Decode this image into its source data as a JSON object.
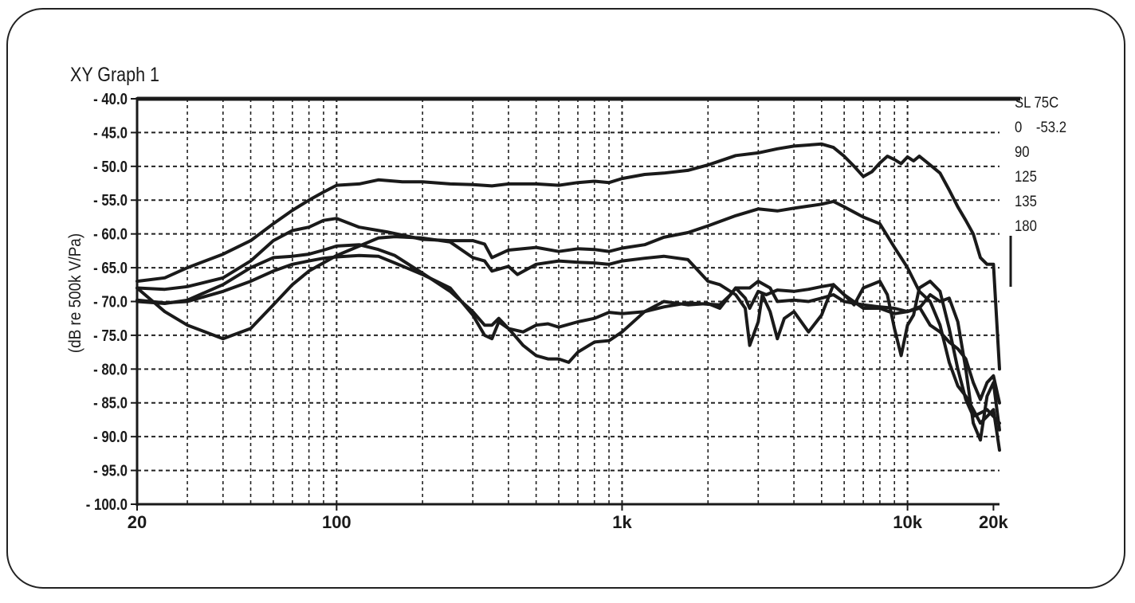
{
  "chart_data": {
    "type": "line",
    "title": "XY Graph 1",
    "ylabel": "(dB re 500k V/Pa)",
    "xlabel": "",
    "xscale": "log",
    "xlim": [
      20,
      21000
    ],
    "ylim": [
      -100,
      -40
    ],
    "grid": true,
    "legend_placement": "right",
    "x_ticks": [
      {
        "value": 20,
        "label": "20"
      },
      {
        "value": 100,
        "label": "100"
      },
      {
        "value": 1000,
        "label": "1k"
      },
      {
        "value": 10000,
        "label": "10k"
      },
      {
        "value": 20000,
        "label": "20k"
      }
    ],
    "y_ticks": [
      {
        "value": -40,
        "label": "- 40.0"
      },
      {
        "value": -45,
        "label": "- 45.0"
      },
      {
        "value": -50,
        "label": "- 50.0"
      },
      {
        "value": -55,
        "label": "- 55.0"
      },
      {
        "value": -60,
        "label": "- 60.0"
      },
      {
        "value": -65,
        "label": "- 65.0"
      },
      {
        "value": -70,
        "label": "- 70.0"
      },
      {
        "value": -75,
        "label": "- 75.0"
      },
      {
        "value": -80,
        "label": "- 80.0"
      },
      {
        "value": -85,
        "label": "- 85.0"
      },
      {
        "value": -90,
        "label": "- 90.0"
      },
      {
        "value": -95,
        "label": "- 95.0"
      },
      {
        "value": -100,
        "label": "- 100.0"
      }
    ],
    "legend": {
      "header": "SL 75C",
      "entries": [
        {
          "name": "0",
          "value": "-53.2"
        },
        {
          "name": "90",
          "value": ""
        },
        {
          "name": "125",
          "value": ""
        },
        {
          "name": "135",
          "value": ""
        },
        {
          "name": "180",
          "value": ""
        }
      ]
    },
    "series": [
      {
        "name": "0",
        "color": "#1a1a1a",
        "points": [
          [
            20,
            -67
          ],
          [
            25,
            -66.5
          ],
          [
            30,
            -65
          ],
          [
            40,
            -63
          ],
          [
            50,
            -61
          ],
          [
            60,
            -58.5
          ],
          [
            70,
            -56.5
          ],
          [
            80,
            -55
          ],
          [
            90,
            -53.8
          ],
          [
            100,
            -52.8
          ],
          [
            120,
            -52.6
          ],
          [
            140,
            -52
          ],
          [
            170,
            -52.3
          ],
          [
            200,
            -52.3
          ],
          [
            250,
            -52.6
          ],
          [
            300,
            -52.7
          ],
          [
            350,
            -52.9
          ],
          [
            400,
            -52.6
          ],
          [
            500,
            -52.6
          ],
          [
            600,
            -52.8
          ],
          [
            700,
            -52.4
          ],
          [
            800,
            -52.2
          ],
          [
            900,
            -52.4
          ],
          [
            1000,
            -51.8
          ],
          [
            1200,
            -51.2
          ],
          [
            1400,
            -51
          ],
          [
            1700,
            -50.6
          ],
          [
            2000,
            -49.8
          ],
          [
            2500,
            -48.4
          ],
          [
            3000,
            -48
          ],
          [
            3500,
            -47.4
          ],
          [
            4000,
            -47
          ],
          [
            5000,
            -46.7
          ],
          [
            5500,
            -47.2
          ],
          [
            6000,
            -48.5
          ],
          [
            6500,
            -50
          ],
          [
            7000,
            -51.5
          ],
          [
            7500,
            -50.8
          ],
          [
            8000,
            -49.5
          ],
          [
            8500,
            -48.5
          ],
          [
            9000,
            -49
          ],
          [
            9500,
            -49.6
          ],
          [
            10000,
            -48.6
          ],
          [
            10500,
            -49.2
          ],
          [
            11000,
            -48.5
          ],
          [
            12000,
            -49.8
          ],
          [
            13000,
            -51
          ],
          [
            14000,
            -53.5
          ],
          [
            15000,
            -56
          ],
          [
            16000,
            -58
          ],
          [
            17000,
            -60
          ],
          [
            18000,
            -63.5
          ],
          [
            19000,
            -64.5
          ],
          [
            20000,
            -64.5
          ],
          [
            21000,
            -80
          ]
        ]
      },
      {
        "name": "90",
        "color": "#1a1a1a",
        "points": [
          [
            20,
            -68
          ],
          [
            25,
            -68.2
          ],
          [
            30,
            -67.8
          ],
          [
            40,
            -66.5
          ],
          [
            50,
            -64
          ],
          [
            60,
            -61
          ],
          [
            70,
            -59.5
          ],
          [
            80,
            -59
          ],
          [
            90,
            -58
          ],
          [
            100,
            -57.7
          ],
          [
            120,
            -59
          ],
          [
            150,
            -59.7
          ],
          [
            200,
            -60.8
          ],
          [
            250,
            -61
          ],
          [
            300,
            -61
          ],
          [
            330,
            -61.5
          ],
          [
            350,
            -63.5
          ],
          [
            400,
            -62.4
          ],
          [
            500,
            -62
          ],
          [
            600,
            -62.6
          ],
          [
            700,
            -62.2
          ],
          [
            800,
            -62.3
          ],
          [
            900,
            -62.6
          ],
          [
            1000,
            -62.1
          ],
          [
            1200,
            -61.6
          ],
          [
            1400,
            -60.5
          ],
          [
            1700,
            -59.8
          ],
          [
            2000,
            -58.8
          ],
          [
            2500,
            -57.3
          ],
          [
            3000,
            -56.3
          ],
          [
            3500,
            -56.6
          ],
          [
            4000,
            -56.2
          ],
          [
            5000,
            -55.6
          ],
          [
            5500,
            -55.2
          ],
          [
            6000,
            -56
          ],
          [
            7000,
            -57.5
          ],
          [
            8000,
            -58.5
          ],
          [
            9000,
            -62
          ],
          [
            10000,
            -65
          ],
          [
            11000,
            -68.5
          ],
          [
            12000,
            -70
          ],
          [
            13000,
            -73.5
          ],
          [
            14000,
            -79
          ],
          [
            15000,
            -82.5
          ],
          [
            16000,
            -84
          ],
          [
            17000,
            -86
          ],
          [
            18000,
            -88
          ],
          [
            19000,
            -87
          ],
          [
            20000,
            -86
          ],
          [
            21000,
            -92
          ]
        ]
      },
      {
        "name": "125",
        "color": "#1a1a1a",
        "points": [
          [
            20,
            -69.8
          ],
          [
            25,
            -70.2
          ],
          [
            30,
            -70
          ],
          [
            40,
            -68.5
          ],
          [
            50,
            -67
          ],
          [
            60,
            -65.5
          ],
          [
            70,
            -64.5
          ],
          [
            80,
            -64
          ],
          [
            90,
            -63.6
          ],
          [
            100,
            -63.4
          ],
          [
            120,
            -63.2
          ],
          [
            140,
            -63.3
          ],
          [
            160,
            -64.3
          ],
          [
            200,
            -66
          ],
          [
            250,
            -68
          ],
          [
            300,
            -72
          ],
          [
            330,
            -75
          ],
          [
            350,
            -75.5
          ],
          [
            370,
            -73
          ],
          [
            400,
            -74
          ],
          [
            420,
            -75
          ],
          [
            450,
            -76.5
          ],
          [
            500,
            -78
          ],
          [
            550,
            -78.5
          ],
          [
            600,
            -78.5
          ],
          [
            650,
            -79
          ],
          [
            700,
            -77.5
          ],
          [
            800,
            -76
          ],
          [
            900,
            -75.8
          ],
          [
            1000,
            -74.5
          ],
          [
            1200,
            -71.5
          ],
          [
            1400,
            -70
          ],
          [
            1700,
            -70.5
          ],
          [
            2000,
            -70.3
          ],
          [
            2200,
            -71
          ],
          [
            2500,
            -68
          ],
          [
            2800,
            -68
          ],
          [
            3000,
            -67
          ],
          [
            3300,
            -68
          ],
          [
            3500,
            -70
          ],
          [
            4000,
            -69.8
          ],
          [
            4500,
            -70
          ],
          [
            5000,
            -69.5
          ],
          [
            5500,
            -69
          ],
          [
            6000,
            -70
          ],
          [
            7000,
            -70.5
          ],
          [
            8000,
            -70.8
          ],
          [
            9000,
            -71
          ],
          [
            10000,
            -71.5
          ],
          [
            11000,
            -71
          ],
          [
            12000,
            -69
          ],
          [
            13000,
            -70
          ],
          [
            14000,
            -69.5
          ],
          [
            15000,
            -73
          ],
          [
            16000,
            -80
          ],
          [
            17000,
            -88
          ],
          [
            18000,
            -90.5
          ],
          [
            19000,
            -84
          ],
          [
            20000,
            -82
          ],
          [
            21000,
            -89
          ]
        ]
      },
      {
        "name": "135",
        "color": "#1a1a1a",
        "points": [
          [
            20,
            -70
          ],
          [
            25,
            -70.3
          ],
          [
            30,
            -69.8
          ],
          [
            40,
            -67.5
          ],
          [
            50,
            -65
          ],
          [
            60,
            -63.5
          ],
          [
            70,
            -63.3
          ],
          [
            80,
            -63
          ],
          [
            90,
            -62.4
          ],
          [
            100,
            -61.8
          ],
          [
            120,
            -61.6
          ],
          [
            140,
            -62.3
          ],
          [
            160,
            -63.2
          ],
          [
            200,
            -65.8
          ],
          [
            250,
            -68.5
          ],
          [
            300,
            -71.5
          ],
          [
            330,
            -73.5
          ],
          [
            350,
            -73.5
          ],
          [
            370,
            -72.5
          ],
          [
            400,
            -74
          ],
          [
            450,
            -74.5
          ],
          [
            500,
            -73.5
          ],
          [
            550,
            -73.3
          ],
          [
            600,
            -73.8
          ],
          [
            700,
            -73
          ],
          [
            800,
            -72.5
          ],
          [
            900,
            -71.6
          ],
          [
            1000,
            -71.8
          ],
          [
            1200,
            -71.5
          ],
          [
            1400,
            -70.8
          ],
          [
            1700,
            -70.2
          ],
          [
            2000,
            -70.4
          ],
          [
            2200,
            -70.5
          ],
          [
            2400,
            -69
          ],
          [
            2500,
            -68
          ],
          [
            2700,
            -69.5
          ],
          [
            2800,
            -71
          ],
          [
            3000,
            -68.5
          ],
          [
            3200,
            -69
          ],
          [
            3500,
            -68.3
          ],
          [
            4000,
            -68.5
          ],
          [
            4500,
            -68.2
          ],
          [
            5000,
            -67.8
          ],
          [
            5500,
            -67.5
          ],
          [
            6000,
            -69
          ],
          [
            7000,
            -71
          ],
          [
            8000,
            -71
          ],
          [
            9000,
            -71.8
          ],
          [
            10000,
            -71.5
          ],
          [
            11000,
            -70.8
          ],
          [
            12000,
            -73.5
          ],
          [
            13000,
            -74.5
          ],
          [
            14000,
            -76
          ],
          [
            15000,
            -77
          ],
          [
            16000,
            -78.5
          ],
          [
            17000,
            -82
          ],
          [
            18000,
            -84.5
          ],
          [
            19000,
            -82
          ],
          [
            20000,
            -81
          ],
          [
            21000,
            -85
          ]
        ]
      },
      {
        "name": "180",
        "color": "#1a1a1a",
        "points": [
          [
            20,
            -68
          ],
          [
            25,
            -71.5
          ],
          [
            30,
            -73.5
          ],
          [
            40,
            -75.5
          ],
          [
            50,
            -74
          ],
          [
            60,
            -70.5
          ],
          [
            70,
            -67.5
          ],
          [
            80,
            -65.5
          ],
          [
            100,
            -63.2
          ],
          [
            120,
            -61.8
          ],
          [
            140,
            -60.6
          ],
          [
            160,
            -60.4
          ],
          [
            200,
            -60.6
          ],
          [
            250,
            -61.2
          ],
          [
            300,
            -63.5
          ],
          [
            330,
            -64
          ],
          [
            350,
            -65.5
          ],
          [
            400,
            -64.8
          ],
          [
            430,
            -66
          ],
          [
            500,
            -64.5
          ],
          [
            600,
            -64
          ],
          [
            700,
            -64.2
          ],
          [
            800,
            -64.3
          ],
          [
            900,
            -64.5
          ],
          [
            1000,
            -64
          ],
          [
            1200,
            -63.6
          ],
          [
            1400,
            -63.3
          ],
          [
            1700,
            -63.8
          ],
          [
            2000,
            -67
          ],
          [
            2200,
            -67.5
          ],
          [
            2500,
            -69
          ],
          [
            2700,
            -71
          ],
          [
            2800,
            -76.5
          ],
          [
            3000,
            -73
          ],
          [
            3100,
            -69
          ],
          [
            3300,
            -71.5
          ],
          [
            3500,
            -75.5
          ],
          [
            3700,
            -72.5
          ],
          [
            4000,
            -71.5
          ],
          [
            4500,
            -74.5
          ],
          [
            5000,
            -72
          ],
          [
            5500,
            -67.5
          ],
          [
            6000,
            -69
          ],
          [
            6500,
            -70.5
          ],
          [
            7000,
            -68
          ],
          [
            8000,
            -67
          ],
          [
            8500,
            -69
          ],
          [
            9000,
            -74
          ],
          [
            9500,
            -78
          ],
          [
            10000,
            -73.5
          ],
          [
            10500,
            -72
          ],
          [
            11000,
            -68
          ],
          [
            12000,
            -67
          ],
          [
            13000,
            -68.5
          ],
          [
            14000,
            -74
          ],
          [
            15000,
            -80
          ],
          [
            16000,
            -84.5
          ],
          [
            17000,
            -87
          ],
          [
            18000,
            -86.5
          ],
          [
            19000,
            -86
          ],
          [
            20000,
            -87
          ],
          [
            21000,
            -88
          ]
        ]
      }
    ]
  }
}
